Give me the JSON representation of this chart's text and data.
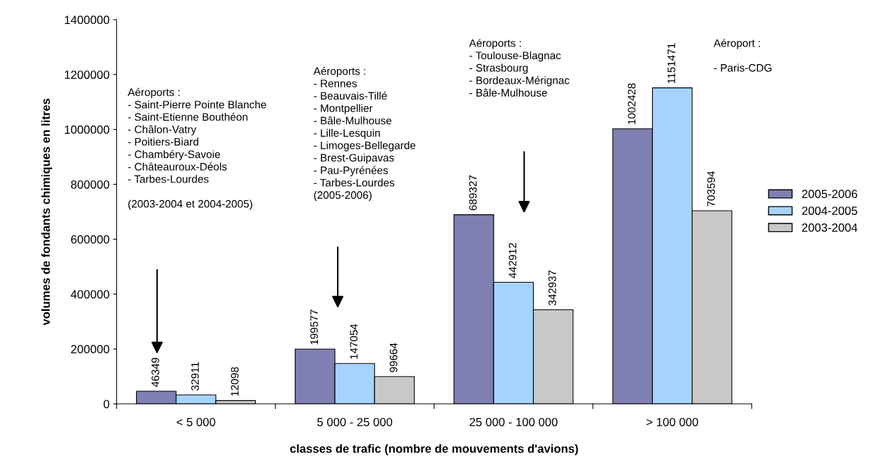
{
  "chart_data": {
    "type": "bar",
    "xlabel": "classes de trafic (nombre de mouvements d'avions)",
    "ylabel": "volumes de fondants chimiques en litres",
    "categories": [
      "< 5 000",
      "5 000 - 25 000",
      "25 000 - 100 000",
      "> 100 000"
    ],
    "series": [
      {
        "name": "2005-2006",
        "color": "#7f7fb2",
        "values": [
          46349,
          199577,
          689327,
          1002428
        ]
      },
      {
        "name": "2004-2005",
        "color": "#a6d3ff",
        "values": [
          32911,
          147054,
          442912,
          1151471
        ]
      },
      {
        "name": "2003-2004",
        "color": "#c8c8c8",
        "values": [
          12098,
          99664,
          342937,
          703594
        ]
      }
    ],
    "ylim": [
      0,
      1400000
    ],
    "yticks": [
      0,
      200000,
      400000,
      600000,
      800000,
      1000000,
      1200000,
      1400000
    ],
    "data_labels": true,
    "legend": "right",
    "grid": false,
    "annotations": [
      "Aéroports :\n- Saint-Pierre Pointe Blanche\n- Saint-Etienne Bouthéon\n- Châlon-Vatry\n- Poitiers-Biard\n- Chambéry-Savoie\n- Châteauroux-Déols\n- Tarbes-Lourdes\n\n(2003-2004 et 2004-2005)",
      "Aéroports :\n- Rennes\n- Beauvais-Tillé\n- Montpellier\n- Bâle-Mulhouse\n- Lille-Lesquin\n- Limoges-Bellegarde\n- Brest-Guipavas\n- Pau-Pyrénées\n- Tarbes-Lourdes\n(2005-2006)",
      "Aéroports :\n- Toulouse-Blagnac\n- Strasbourg\n- Bordeaux-Mérignac\n- Bâle-Mulhouse",
      "Aéroport :\n\n- Paris-CDG"
    ]
  }
}
